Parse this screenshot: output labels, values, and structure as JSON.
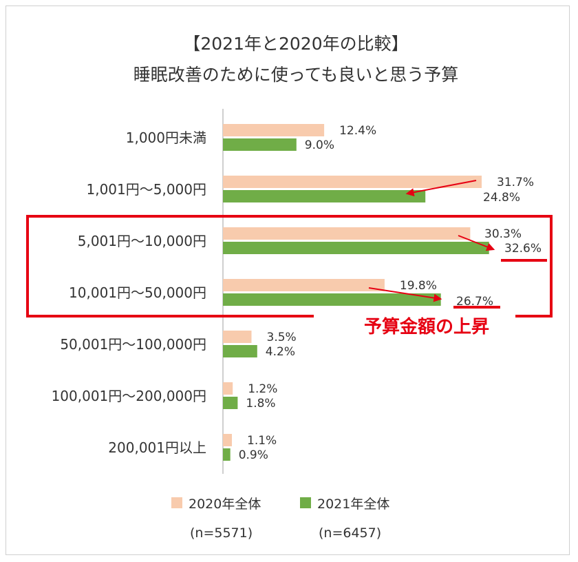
{
  "chart_data": {
    "type": "bar",
    "orientation": "horizontal",
    "title": "【2021年と2020年の比較】",
    "subtitle": "睡眠改善のために使っても良いと思う予算",
    "categories": [
      "1,000円未満",
      "1,001円～5,000円",
      "5,001円～10,000円",
      "10,001円～50,000円",
      "50,001円～100,000円",
      "100,001円～200,000円",
      "200,001円以上"
    ],
    "series": [
      {
        "name": "2020年全体",
        "n_label": "(n=5571)",
        "color": "#f8cbad",
        "values": [
          12.4,
          31.7,
          30.3,
          19.8,
          3.5,
          1.2,
          1.1
        ],
        "labels": [
          "12.4%",
          "31.7%",
          "30.3%",
          "19.8%",
          "3.5%",
          "1.2%",
          "1.1%"
        ]
      },
      {
        "name": "2021年全体",
        "n_label": "(n=6457)",
        "color": "#70ad47",
        "values": [
          9.0,
          24.8,
          32.6,
          26.7,
          4.2,
          1.8,
          0.9
        ],
        "labels": [
          "9.0%",
          "24.8%",
          "32.6%",
          "26.7%",
          "4.2%",
          "1.8%",
          "0.9%"
        ]
      }
    ],
    "xlim": [
      0,
      35
    ],
    "grid": false,
    "legend_position": "bottom",
    "annotation": {
      "text": "予算金額の上昇",
      "color": "#e60012",
      "highlighted_categories": [
        "5,001円～10,000円",
        "10,001円～50,000円"
      ]
    }
  }
}
